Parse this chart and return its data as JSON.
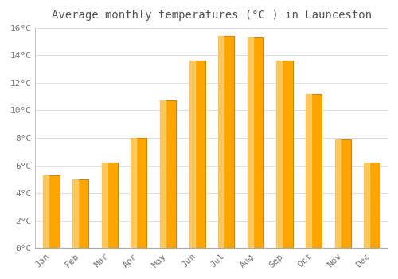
{
  "title": "Average monthly temperatures (°C ) in Launceston",
  "months": [
    "Jan",
    "Feb",
    "Mar",
    "Apr",
    "May",
    "Jun",
    "Jul",
    "Aug",
    "Sep",
    "Oct",
    "Nov",
    "Dec"
  ],
  "temperatures": [
    5.3,
    5.0,
    6.2,
    8.0,
    10.7,
    13.6,
    15.4,
    15.3,
    13.6,
    11.2,
    7.9,
    6.2
  ],
  "bar_color_main": "#FFA500",
  "bar_color_light": "#FFD580",
  "bar_edge_color": "#CC8800",
  "ylim": [
    0,
    16
  ],
  "yticks": [
    0,
    2,
    4,
    6,
    8,
    10,
    12,
    14,
    16
  ],
  "background_color": "#ffffff",
  "plot_bg_color": "#ffffff",
  "grid_color": "#e0e0e0",
  "title_fontsize": 10,
  "tick_fontsize": 8,
  "tick_color": "#777777",
  "font_family": "monospace"
}
